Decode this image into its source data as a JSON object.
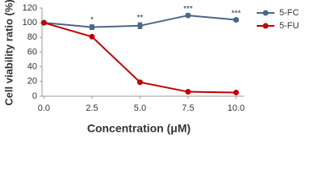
{
  "chart_data": {
    "type": "line",
    "xlabel": "Concentration (μM)",
    "ylabel": "Cell viability ratio (%)",
    "x": [
      0,
      2.5,
      5,
      7.5,
      10
    ],
    "series": [
      {
        "name": "5-FC",
        "color": "#4a6785",
        "values": [
          100,
          94,
          96,
          110,
          104
        ],
        "errors": [
          2,
          3,
          4,
          2,
          2
        ],
        "significance": [
          null,
          "*",
          "**",
          "***",
          "***"
        ]
      },
      {
        "name": "5-FU",
        "color": "#c00000",
        "values": [
          100,
          81,
          19,
          6,
          5
        ]
      }
    ],
    "xlim": [
      -0.1,
      10.4
    ],
    "ylim": [
      0,
      120
    ],
    "xticks": [
      {
        "value": 0,
        "label": "0.0"
      },
      2.5,
      {
        "value": 5,
        "label": "5.0"
      },
      7.5,
      {
        "value": 10,
        "label": "10.0"
      }
    ],
    "yticks": [
      0,
      20,
      40,
      60,
      80,
      100,
      120
    ],
    "legend": "right"
  }
}
